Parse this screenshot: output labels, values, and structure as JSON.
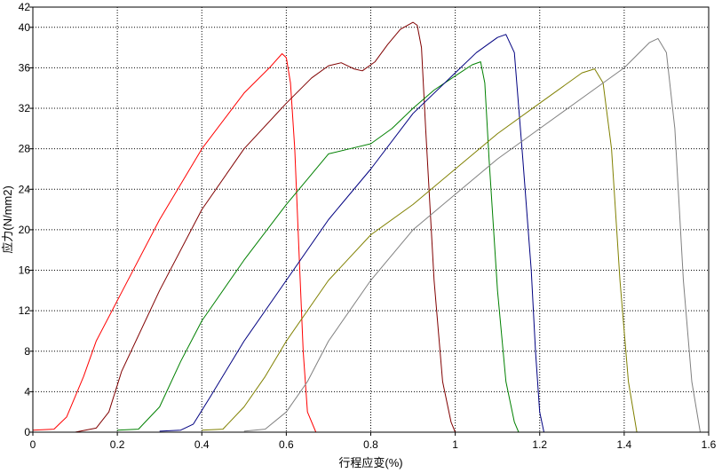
{
  "chart_data": {
    "type": "line",
    "title": "",
    "xlabel": "行程应变(%)",
    "ylabel": "应力(N/mm2)",
    "xlim": [
      0,
      1.6
    ],
    "ylim": [
      0,
      42
    ],
    "x_ticks": [
      0,
      0.2,
      0.4,
      0.6,
      0.8,
      1,
      1.2,
      1.4,
      1.6
    ],
    "x_tick_labels": [
      "0",
      "0.2",
      "0.4",
      "0.6",
      "0.8",
      "1",
      "1.2",
      "1.4",
      "1.6"
    ],
    "y_ticks": [
      0,
      4,
      8,
      12,
      16,
      20,
      24,
      28,
      32,
      36,
      40,
      42
    ],
    "y_tick_labels": [
      "0",
      "4",
      "8",
      "12",
      "16",
      "20",
      "24",
      "28",
      "32",
      "36",
      "40",
      "42"
    ],
    "grid": true,
    "grid_style": "dotted",
    "legend": "none",
    "series": [
      {
        "color": "#ff0000",
        "points": [
          [
            0,
            0.2
          ],
          [
            0.05,
            0.3
          ],
          [
            0.08,
            1.5
          ],
          [
            0.12,
            5.5
          ],
          [
            0.15,
            9
          ],
          [
            0.2,
            13
          ],
          [
            0.3,
            21
          ],
          [
            0.4,
            28
          ],
          [
            0.5,
            33.5
          ],
          [
            0.56,
            36
          ],
          [
            0.59,
            37.4
          ],
          [
            0.6,
            37
          ],
          [
            0.61,
            34.5
          ],
          [
            0.62,
            28
          ],
          [
            0.63,
            18
          ],
          [
            0.64,
            8
          ],
          [
            0.65,
            2
          ],
          [
            0.67,
            0
          ]
        ]
      },
      {
        "color": "#800000",
        "points": [
          [
            0.1,
            0
          ],
          [
            0.15,
            0.4
          ],
          [
            0.18,
            2
          ],
          [
            0.21,
            6
          ],
          [
            0.3,
            14
          ],
          [
            0.4,
            22
          ],
          [
            0.5,
            28
          ],
          [
            0.6,
            32.5
          ],
          [
            0.66,
            35
          ],
          [
            0.7,
            36.2
          ],
          [
            0.73,
            36.5
          ],
          [
            0.76,
            35.9
          ],
          [
            0.78,
            35.7
          ],
          [
            0.81,
            36.6
          ],
          [
            0.84,
            38.3
          ],
          [
            0.87,
            39.8
          ],
          [
            0.9,
            40.5
          ],
          [
            0.91,
            40.2
          ],
          [
            0.92,
            38
          ],
          [
            0.93,
            30
          ],
          [
            0.95,
            15
          ],
          [
            0.97,
            5
          ],
          [
            0.99,
            1
          ],
          [
            1,
            0
          ]
        ]
      },
      {
        "color": "#008000",
        "points": [
          [
            0.2,
            0.2
          ],
          [
            0.25,
            0.3
          ],
          [
            0.3,
            2.5
          ],
          [
            0.35,
            7
          ],
          [
            0.4,
            11
          ],
          [
            0.5,
            17
          ],
          [
            0.6,
            22.5
          ],
          [
            0.65,
            25
          ],
          [
            0.7,
            27.5
          ],
          [
            0.75,
            28
          ],
          [
            0.8,
            28.5
          ],
          [
            0.85,
            30
          ],
          [
            0.9,
            32
          ],
          [
            0.95,
            33.8
          ],
          [
            1,
            35.2
          ],
          [
            1.04,
            36.3
          ],
          [
            1.06,
            36.6
          ],
          [
            1.07,
            34.5
          ],
          [
            1.08,
            27
          ],
          [
            1.1,
            14
          ],
          [
            1.12,
            5
          ],
          [
            1.14,
            1
          ],
          [
            1.15,
            0
          ]
        ]
      },
      {
        "color": "#000080",
        "points": [
          [
            0.3,
            0.1
          ],
          [
            0.35,
            0.2
          ],
          [
            0.38,
            0.8
          ],
          [
            0.42,
            3.5
          ],
          [
            0.5,
            9
          ],
          [
            0.6,
            15
          ],
          [
            0.7,
            21
          ],
          [
            0.8,
            26
          ],
          [
            0.9,
            31.5
          ],
          [
            1,
            35.5
          ],
          [
            1.05,
            37.5
          ],
          [
            1.1,
            39
          ],
          [
            1.12,
            39.3
          ],
          [
            1.14,
            37.5
          ],
          [
            1.16,
            27
          ],
          [
            1.18,
            16
          ],
          [
            1.19,
            8
          ],
          [
            1.2,
            2
          ],
          [
            1.21,
            0
          ]
        ]
      },
      {
        "color": "#808000",
        "points": [
          [
            0.4,
            0.2
          ],
          [
            0.45,
            0.3
          ],
          [
            0.5,
            2.5
          ],
          [
            0.55,
            5.5
          ],
          [
            0.6,
            9
          ],
          [
            0.7,
            15
          ],
          [
            0.8,
            19.5
          ],
          [
            0.9,
            22.5
          ],
          [
            1,
            26
          ],
          [
            1.1,
            29.5
          ],
          [
            1.2,
            32.5
          ],
          [
            1.3,
            35.5
          ],
          [
            1.33,
            35.9
          ],
          [
            1.35,
            34.5
          ],
          [
            1.37,
            28
          ],
          [
            1.39,
            15
          ],
          [
            1.41,
            5
          ],
          [
            1.43,
            0
          ]
        ]
      },
      {
        "color": "#808080",
        "points": [
          [
            0.5,
            0.1
          ],
          [
            0.55,
            0.3
          ],
          [
            0.6,
            2
          ],
          [
            0.65,
            5
          ],
          [
            0.7,
            9
          ],
          [
            0.8,
            15
          ],
          [
            0.9,
            20
          ],
          [
            1,
            23.5
          ],
          [
            1.1,
            27
          ],
          [
            1.2,
            30
          ],
          [
            1.3,
            33
          ],
          [
            1.4,
            36
          ],
          [
            1.46,
            38.5
          ],
          [
            1.48,
            38.9
          ],
          [
            1.5,
            37.5
          ],
          [
            1.52,
            30
          ],
          [
            1.54,
            15
          ],
          [
            1.56,
            5
          ],
          [
            1.58,
            0
          ]
        ]
      }
    ]
  }
}
